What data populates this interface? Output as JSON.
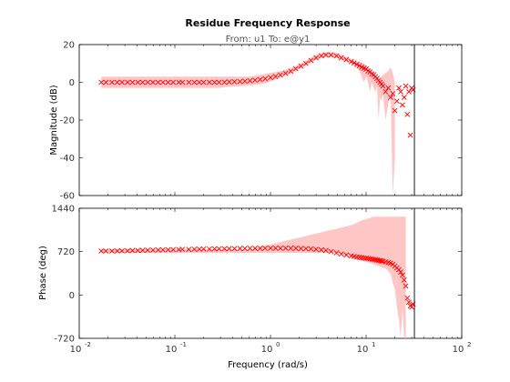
{
  "chart_data": {
    "type": "scatter",
    "title": "Residue Frequency Response",
    "subtitle": "From: u1  To: e@y1",
    "xlabel": "Frequency  (rad/s)",
    "xscale": "log",
    "xlim": [
      0.01,
      100
    ],
    "x_ticks": [
      {
        "label_base": "10",
        "label_exp": "-2"
      },
      {
        "label_base": "10",
        "label_exp": "-1"
      },
      {
        "label_base": "10",
        "label_exp": "0"
      },
      {
        "label_base": "10",
        "label_exp": "1"
      },
      {
        "label_base": "10",
        "label_exp": "2"
      }
    ],
    "vertical_line_x": 32,
    "colors": {
      "marker": "#ff0000",
      "band": "#ffb3b3",
      "vline": "#000000",
      "axis": "#000000"
    },
    "panels": [
      {
        "ylabel": "Magnitude (dB)",
        "ylim": [
          -60,
          20
        ],
        "y_ticks": [
          "20",
          "0",
          "-20",
          "-40",
          "-60"
        ],
        "y_tick_values": [
          20,
          0,
          -20,
          -40,
          -60
        ],
        "series": [
          {
            "marker": "x",
            "x": [
              0.017,
              0.019,
              0.022,
              0.025,
              0.028,
              0.032,
              0.036,
              0.041,
              0.046,
              0.052,
              0.059,
              0.067,
              0.075,
              0.085,
              0.096,
              0.11,
              0.12,
              0.14,
              0.16,
              0.18,
              0.2,
              0.23,
              0.26,
              0.29,
              0.33,
              0.37,
              0.42,
              0.48,
              0.54,
              0.61,
              0.69,
              0.78,
              0.88,
              1.0,
              1.13,
              1.27,
              1.44,
              1.63,
              1.84,
              2.08,
              2.35,
              2.65,
              3.0,
              3.4,
              3.8,
              4.3,
              4.9,
              5.5,
              6.2,
              7.0,
              7.5,
              8.0,
              8.5,
              9.0,
              9.5,
              10.0,
              10.5,
              11,
              11.5,
              12,
              12.5,
              13,
              13.5,
              14,
              14.5,
              15,
              16,
              17,
              18,
              19,
              20,
              21,
              22,
              23,
              24,
              25,
              26,
              27,
              28,
              29,
              30,
              31
            ],
            "y": [
              0,
              0,
              0,
              0,
              0,
              0,
              0,
              0,
              0,
              0,
              0,
              0,
              0,
              0,
              0,
              0,
              0,
              0,
              0,
              0,
              0,
              0,
              0,
              0,
              0.1,
              0.2,
              0.3,
              0.4,
              0.6,
              0.8,
              1.1,
              1.5,
              1.9,
              2.5,
              3.1,
              3.9,
              4.8,
              5.9,
              7.2,
              8.6,
              10.0,
              11.6,
              13.0,
              14.0,
              14.5,
              14.5,
              14.0,
              13.0,
              12.0,
              11.0,
              10.3,
              9.5,
              8.8,
              8.0,
              7.5,
              7.0,
              6.0,
              5.5,
              4.5,
              4,
              3,
              2,
              1,
              0,
              -1,
              -2,
              -5,
              -3,
              -8,
              -6,
              -15,
              -10,
              -3,
              -5,
              -12,
              -8,
              -2,
              -17,
              -5,
              -28,
              -3,
              -4
            ],
            "band_low": [
              -3,
              -3,
              -3,
              -3,
              -3,
              -3,
              -3,
              -3,
              -3,
              -3,
              -3,
              -3,
              -3,
              -3,
              -3,
              -3,
              -3,
              -3,
              -3,
              -3,
              -3,
              -3,
              -3,
              -3,
              -2.6,
              -2.4,
              -2.2,
              -2,
              -1.8,
              -1.6,
              -1.3,
              -1,
              -0.5,
              0.5,
              1.5,
              2.5,
              3.5,
              4.5,
              6,
              7.5,
              9,
              10.5,
              12,
              13,
              13.5,
              13.5,
              13,
              12,
              11,
              10,
              9,
              8,
              6,
              3,
              0,
              3,
              0,
              -5,
              0,
              -3,
              -5,
              -2,
              -20,
              -8,
              -10,
              -6,
              -20,
              -12,
              -5,
              -60,
              -40,
              -60,
              -30,
              -60,
              -20,
              -60,
              -40
            ],
            "band_high": [
              3,
              3,
              3,
              3,
              3,
              3,
              3,
              3,
              3,
              3,
              3,
              3,
              3,
              3,
              3,
              3,
              3,
              3,
              3,
              3,
              3,
              3,
              3,
              3,
              3,
              3,
              3,
              3,
              3,
              3,
              3.5,
              4,
              4.5,
              5,
              5.5,
              6,
              6.5,
              7.5,
              8.5,
              10,
              11.5,
              13,
              14.5,
              15.5,
              16,
              16,
              15.5,
              14.5,
              13.5,
              12.5,
              11.5,
              11,
              11,
              10.5,
              10,
              9,
              8,
              7,
              6,
              5,
              4,
              3,
              2,
              2,
              3,
              4,
              5,
              6,
              8,
              5,
              0
            ]
          }
        ]
      },
      {
        "ylabel": "Phase (deg)",
        "ylim": [
          -720,
          1440
        ],
        "y_ticks": [
          "1440",
          "720",
          "0",
          "-720"
        ],
        "y_tick_values": [
          1440,
          720,
          0,
          -720
        ],
        "series": [
          {
            "marker": "x",
            "x": [
              0.017,
              0.019,
              0.022,
              0.025,
              0.028,
              0.032,
              0.036,
              0.041,
              0.046,
              0.052,
              0.059,
              0.067,
              0.075,
              0.085,
              0.096,
              0.11,
              0.12,
              0.14,
              0.16,
              0.18,
              0.2,
              0.23,
              0.26,
              0.29,
              0.33,
              0.37,
              0.42,
              0.48,
              0.54,
              0.61,
              0.69,
              0.78,
              0.88,
              1.0,
              1.13,
              1.27,
              1.44,
              1.63,
              1.84,
              2.08,
              2.35,
              2.65,
              3.0,
              3.4,
              3.8,
              4.3,
              4.9,
              5.5,
              6.2,
              7.0,
              7.5,
              8.0,
              8.5,
              9.0,
              9.5,
              10.0,
              10.5,
              11,
              11.5,
              12,
              12.5,
              13,
              13.5,
              14,
              14.5,
              15,
              16,
              17,
              18,
              19,
              20,
              21,
              22,
              23,
              24,
              25,
              26,
              27,
              28,
              29,
              30,
              31
            ],
            "y": [
              730,
              730,
              730,
              732,
              734,
              735,
              738,
              740,
              742,
              744,
              746,
              748,
              750,
              752,
              754,
              755,
              757,
              758,
              760,
              762,
              763,
              764,
              766,
              767,
              768,
              770,
              771,
              772,
              773,
              774,
              775,
              776,
              776,
              777,
              777,
              777,
              777,
              776,
              775,
              773,
              770,
              765,
              758,
              750,
              740,
              720,
              700,
              680,
              665,
              650,
              640,
              630,
              625,
              620,
              615,
              610,
              605,
              600,
              595,
              590,
              585,
              580,
              575,
              570,
              565,
              560,
              550,
              540,
              530,
              510,
              480,
              450,
              420,
              380,
              330,
              250,
              150,
              -50,
              -120,
              -180,
              -200,
              -150
            ],
            "band_low": [
              700,
              700,
              700,
              700,
              700,
              700,
              700,
              700,
              700,
              700,
              700,
              700,
              700,
              700,
              700,
              700,
              700,
              700,
              700,
              700,
              700,
              700,
              700,
              700,
              700,
              700,
              700,
              700,
              700,
              700,
              700,
              700,
              700,
              700,
              700,
              700,
              700,
              700,
              700,
              700,
              700,
              700,
              700,
              700,
              700,
              700,
              700,
              680,
              650,
              620,
              600,
              590,
              580,
              570,
              560,
              550,
              540,
              530,
              520,
              510,
              500,
              490,
              480,
              470,
              460,
              450,
              440,
              400,
              350,
              200,
              100,
              -200,
              -400,
              -720,
              -200,
              -720,
              -720
            ],
            "band_high": [
              760,
              760,
              760,
              760,
              760,
              760,
              760,
              760,
              760,
              760,
              760,
              760,
              760,
              760,
              760,
              760,
              760,
              760,
              760,
              760,
              760,
              760,
              760,
              760,
              760,
              760,
              760,
              760,
              760,
              760,
              780,
              800,
              820,
              840,
              860,
              880,
              900,
              920,
              940,
              960,
              980,
              1000,
              1020,
              1040,
              1060,
              1080,
              1100,
              1120,
              1140,
              1160,
              1180,
              1200,
              1220,
              1240,
              1250,
              1260,
              1270,
              1280,
              1290,
              1300,
              1300,
              1300,
              1300,
              1300,
              1300,
              1300,
              1300,
              1300,
              1300,
              1300,
              1300,
              1300,
              1300,
              1300,
              1300,
              1300,
              1300
            ]
          }
        ]
      }
    ]
  }
}
